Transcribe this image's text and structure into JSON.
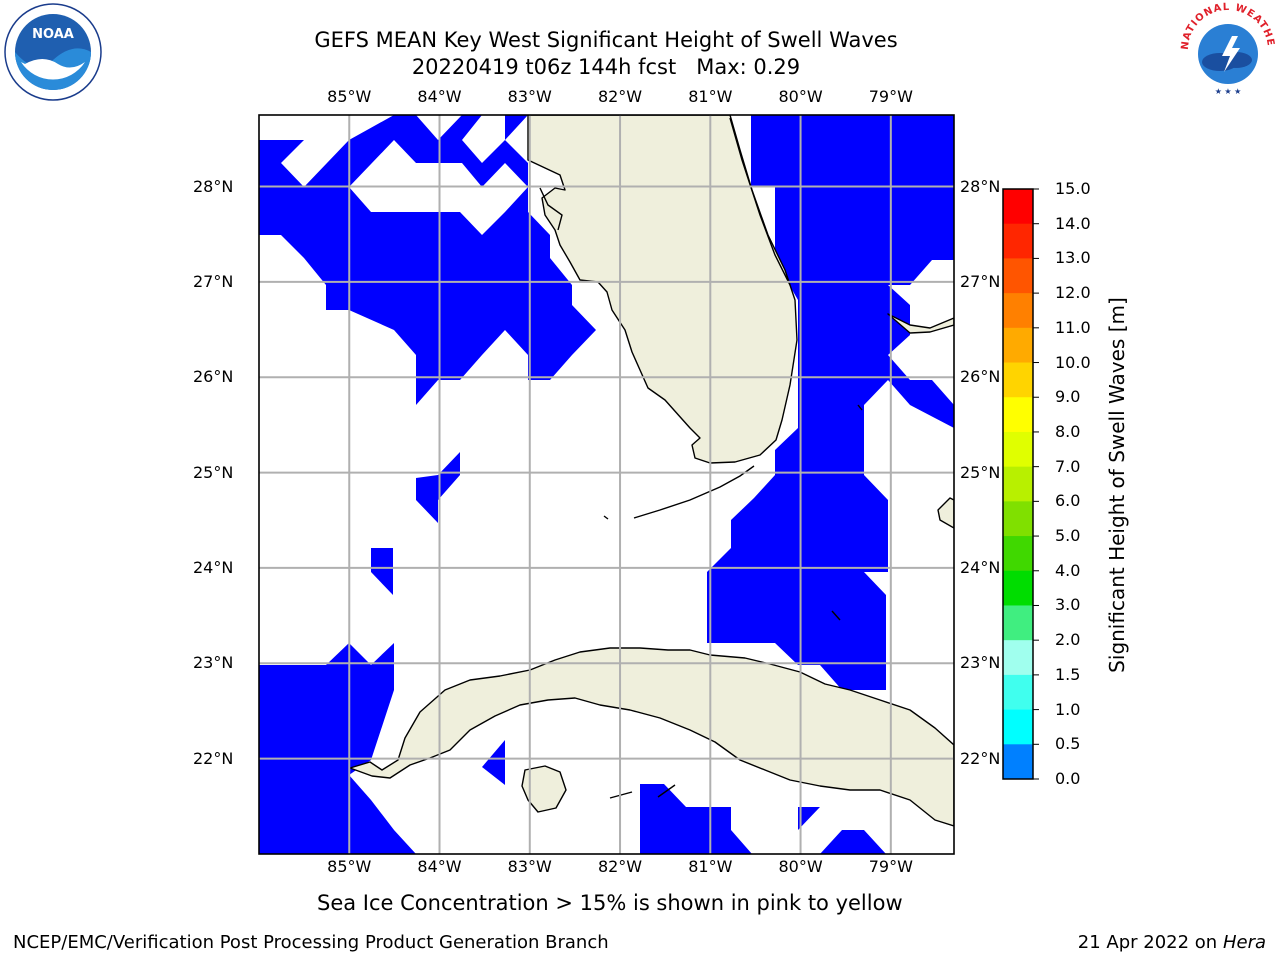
{
  "title": {
    "line1": "GEFS MEAN Key West Significant Height of Swell Waves",
    "line2": "20220419 t06z 144h fcst   Max: 0.29"
  },
  "map": {
    "longitude_labels": [
      "85°W",
      "84°W",
      "83°W",
      "82°W",
      "81°W",
      "80°W",
      "79°W"
    ],
    "latitude_labels": [
      "28°N",
      "27°N",
      "26°N",
      "25°N",
      "24°N",
      "23°N",
      "22°N"
    ],
    "longitude_values": [
      -85,
      -84,
      -83,
      -82,
      -81,
      -80,
      -79
    ],
    "latitude_values": [
      28,
      27,
      26,
      25,
      24,
      23,
      22
    ],
    "extent": {
      "lon": [
        -86.0,
        -78.3
      ],
      "lat": [
        21.0,
        28.75
      ]
    },
    "colors": {
      "water_field": "#0000ff",
      "land": "#efefdc",
      "coastline": "#000000",
      "gridline": "#b0b0b0"
    }
  },
  "colorbar": {
    "title": "Significant Height of Swell Waves [m]",
    "labels": [
      "15.0",
      "14.0",
      "13.0",
      "12.0",
      "11.0",
      "10.0",
      "9.0",
      "8.0",
      "7.0",
      "6.0",
      "5.0",
      "4.0",
      "3.0",
      "2.0",
      "1.5",
      "1.0",
      "0.5",
      "0.0"
    ],
    "colors": [
      "#ff0000",
      "#ff2600",
      "#ff5500",
      "#ff8000",
      "#ffaa00",
      "#ffd400",
      "#ffff00",
      "#e0ff00",
      "#b8f000",
      "#80e000",
      "#40d800",
      "#00dd00",
      "#40ee80",
      "#a0ffee",
      "#40ffee",
      "#00ffff",
      "#0080ff",
      "#0000ff"
    ],
    "range": [
      0.0,
      15.0
    ]
  },
  "sea_ice_note": "Sea Ice Concentration > 15% is shown in pink to yellow",
  "footer": {
    "left": "NCEP/EMC/Verification Post Processing Product Generation Branch",
    "date": "21 Apr 2022 on ",
    "machine": "Hera"
  },
  "logos": {
    "left_text": "NOAA",
    "right_text": "NATIONAL WEATHER SERVICE"
  }
}
